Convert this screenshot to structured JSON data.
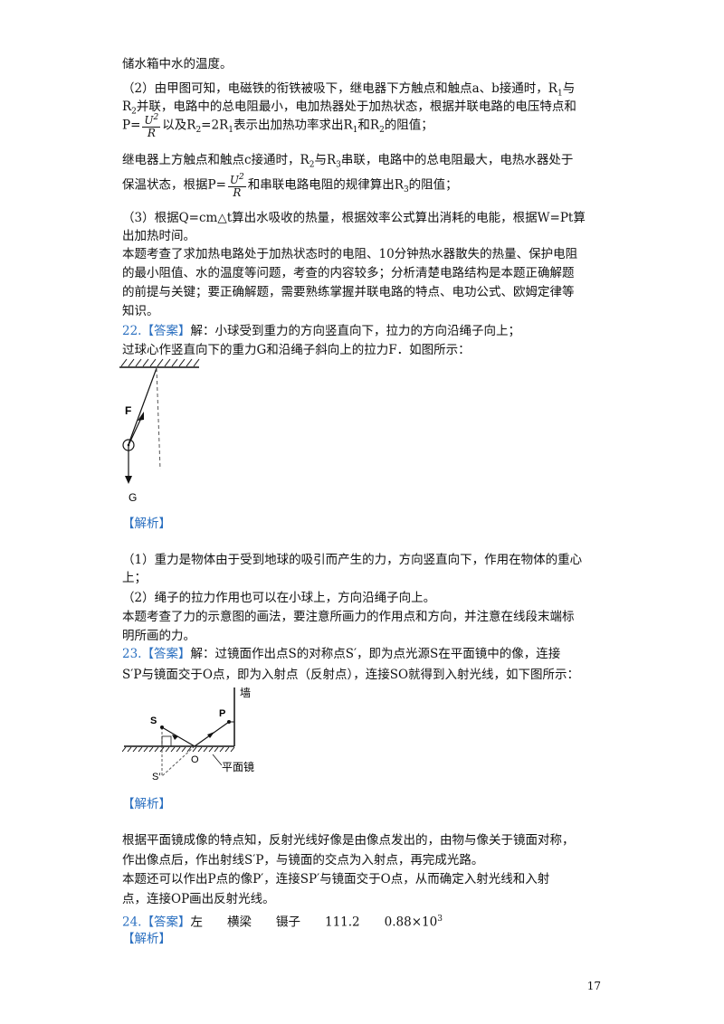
{
  "lines": {
    "l01": "储水箱中水的温度。",
    "l02a": "（2）由甲图可知，电磁铁的衔铁被吸下，继电器下方触点和触点a、b接通时，R",
    "l02b": "与",
    "l03a": "R",
    "l03b": "并联，电路中的总电阻最小，电加热器处于加热状态，根据并联电路的电压特点和",
    "l04a": "P=",
    "l04b": "以及R",
    "l04c": "=2R",
    "l04d": "表示出加热功率求出R",
    "l04e": "和R",
    "l04f": "的阻值；",
    "l05a": "继电器上方触点和触点c接通时，R",
    "l05b": "与R",
    "l05c": "串联，电路中的总电阻最大，电热水器处于",
    "l06a": "保温状态，根据P=",
    "l06b": "和串联电路电阻的规律算出R",
    "l06c": "的阻值；",
    "l07": "（3）根据Q=cm△t算出水吸收的热量，根据效率公式算出消耗的电能，根据W=Pt算",
    "l08": "出加热时间。",
    "l09": "本题考查了求加热电路处于加热状态时的电阻、10分钟热水器散失的热量、保护电阻",
    "l10": "的最小阻值、水的温度等问题，考查的内容较多；分析清楚电路结构是本题正确解题",
    "l11": "的前提与关键；要正确解题，需要熟练掌握并联电路的特点、电功公式、欧姆定律等",
    "l12": "知识。",
    "q22_tag": "22.【答案】",
    "q22_text": "解：小球受到重力的方向竖直向下，拉力的方向沿绳子向上；",
    "q22_line2": "过球心作竖直向下的重力G和沿绳子斜向上的拉力F．如图所示：",
    "jiexi1": "【解析】",
    "e1": "（1）重力是物体由于受到地球的吸引而产生的力，方向竖直向下，作用在物体的重心",
    "e2": "上；",
    "e3": "（2）绳子的拉力作用也可以在小球上，方向沿绳子向上。",
    "e4": "本题考查了力的示意图的画法，要注意所画力的作用点和方向，并注意在线段末端标",
    "e5": "明所画的力。",
    "q23_tag": "23.【答案】",
    "q23_text": "解：过镜面作出点S的对称点S′，即为点光源S在平面镜中的像，连接",
    "q23_line2": "S′P与镜面交于O点，即为入射点（反射点），连接SO就得到入射光线，如下图所示：",
    "jiexi2": "【解析】",
    "f1": "根据平面镜成像的特点知，反射光线好像是由像点发出的，由物与像关于镜面对称，",
    "f2": "作出像点后，作出射线S′P，与镜面的交点为入射点，再完成光路。",
    "f3": "本题还可以作出P点的像P′，连接SP′与镜面交于O点，从而确定入射光线和入射",
    "f4": "点，连接OP画出反射光线。",
    "q24_tag": "24.【答案】",
    "q24_text": "左　　横梁　　镊子　　111.2　　0.88×10",
    "q24_exp": "3",
    "jiexi3": "【解析】"
  },
  "subs": {
    "one": "1",
    "two": "2",
    "three": "3"
  },
  "formula": {
    "num": "U",
    "num_exp": "2",
    "den": "R"
  },
  "fig22": {
    "label_F": "F",
    "label_G": "G"
  },
  "fig23": {
    "label_S": "S",
    "label_P": "P",
    "label_O": "O",
    "label_Sp": "S′",
    "label_wall": "墙",
    "label_mirror": "平面镜"
  },
  "page_number": "17"
}
